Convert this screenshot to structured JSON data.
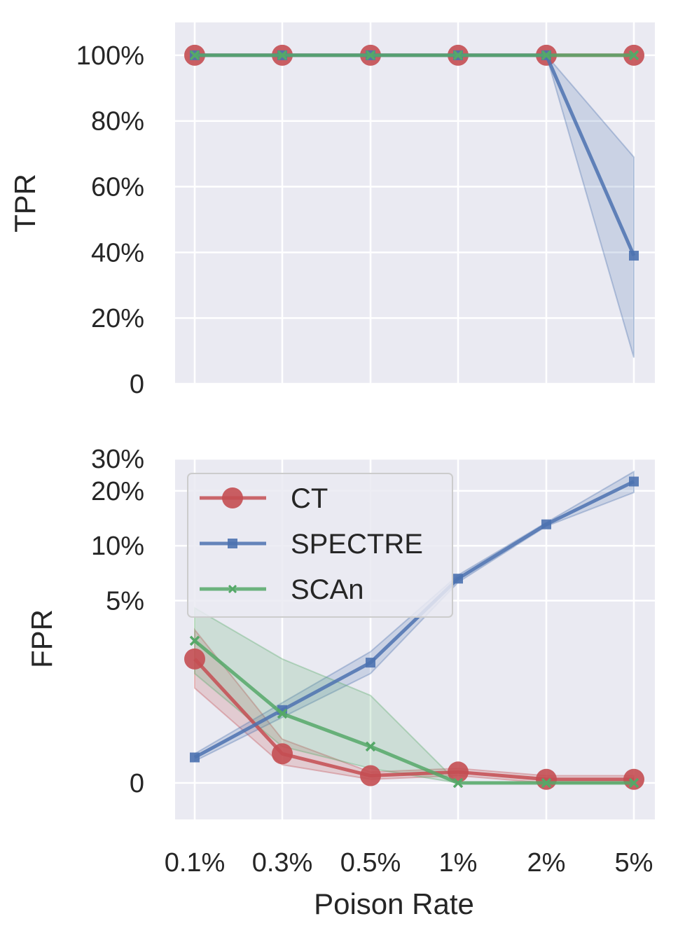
{
  "colors": {
    "CT": "#c44e52",
    "SPECTRE": "#4c72b0",
    "SCAn": "#55a868",
    "panel_bg": "#eaeaf2",
    "grid": "#ffffff"
  },
  "chart_data": [
    {
      "type": "line",
      "ylabel": "TPR",
      "xlabel": "",
      "categories": [
        "0.1%",
        "0.3%",
        "0.5%",
        "1%",
        "2%",
        "5%"
      ],
      "ylim": [
        0,
        1.1
      ],
      "yticks": [
        0,
        0.2,
        0.4,
        0.6,
        0.8,
        1.0
      ],
      "ytick_labels": [
        "0",
        "20%",
        "40%",
        "60%",
        "80%",
        "100%"
      ],
      "grid": true,
      "series": [
        {
          "name": "CT",
          "marker": "circle",
          "values": [
            1.0,
            1.0,
            1.0,
            1.0,
            1.0,
            1.0
          ]
        },
        {
          "name": "SPECTRE",
          "marker": "square",
          "values": [
            1.0,
            1.0,
            1.0,
            1.0,
            1.0,
            0.39
          ],
          "band_lower": [
            1.0,
            1.0,
            1.0,
            1.0,
            1.0,
            0.08
          ],
          "band_upper": [
            1.0,
            1.0,
            1.0,
            1.0,
            1.0,
            0.69
          ]
        },
        {
          "name": "SCAn",
          "marker": "x",
          "values": [
            1.0,
            1.0,
            1.0,
            1.0,
            1.0,
            1.0
          ]
        }
      ]
    },
    {
      "type": "line",
      "ylabel": "FPR",
      "xlabel": "Poison Rate",
      "categories": [
        "0.1%",
        "0.3%",
        "0.5%",
        "1%",
        "2%",
        "5%"
      ],
      "yscale": "symlog",
      "ylim": [
        -0.01,
        0.3
      ],
      "yticks": [
        0,
        0.05,
        0.1,
        0.2,
        0.3
      ],
      "ytick_labels": [
        "0",
        "5%",
        "10%",
        "20%",
        "30%"
      ],
      "grid": true,
      "legend": {
        "position": "upper-left",
        "entries": [
          "CT",
          "SPECTRE",
          "SCAn"
        ]
      },
      "series": [
        {
          "name": "CT",
          "marker": "circle",
          "values": [
            0.034,
            0.008,
            0.002,
            0.003,
            0.001,
            0.001
          ],
          "band_lower": [
            0.026,
            0.005,
            0.001,
            0.002,
            0.0,
            0.0
          ],
          "band_upper": [
            0.042,
            0.012,
            0.003,
            0.004,
            0.002,
            0.002
          ]
        },
        {
          "name": "SPECTRE",
          "marker": "square",
          "values": [
            0.007,
            0.02,
            0.033,
            0.066,
            0.131,
            0.225
          ],
          "band_lower": [
            0.006,
            0.018,
            0.03,
            0.063,
            0.128,
            0.196
          ],
          "band_upper": [
            0.008,
            0.022,
            0.036,
            0.069,
            0.134,
            0.255
          ]
        },
        {
          "name": "SCAn",
          "marker": "x",
          "values": [
            0.039,
            0.019,
            0.01,
            0.0,
            0.0,
            0.0
          ],
          "band_lower": [
            0.03,
            0.01,
            0.004,
            0.0,
            0.0,
            0.0
          ],
          "band_upper": [
            0.048,
            0.034,
            0.024,
            0.0,
            0.0,
            0.0
          ]
        }
      ]
    }
  ]
}
